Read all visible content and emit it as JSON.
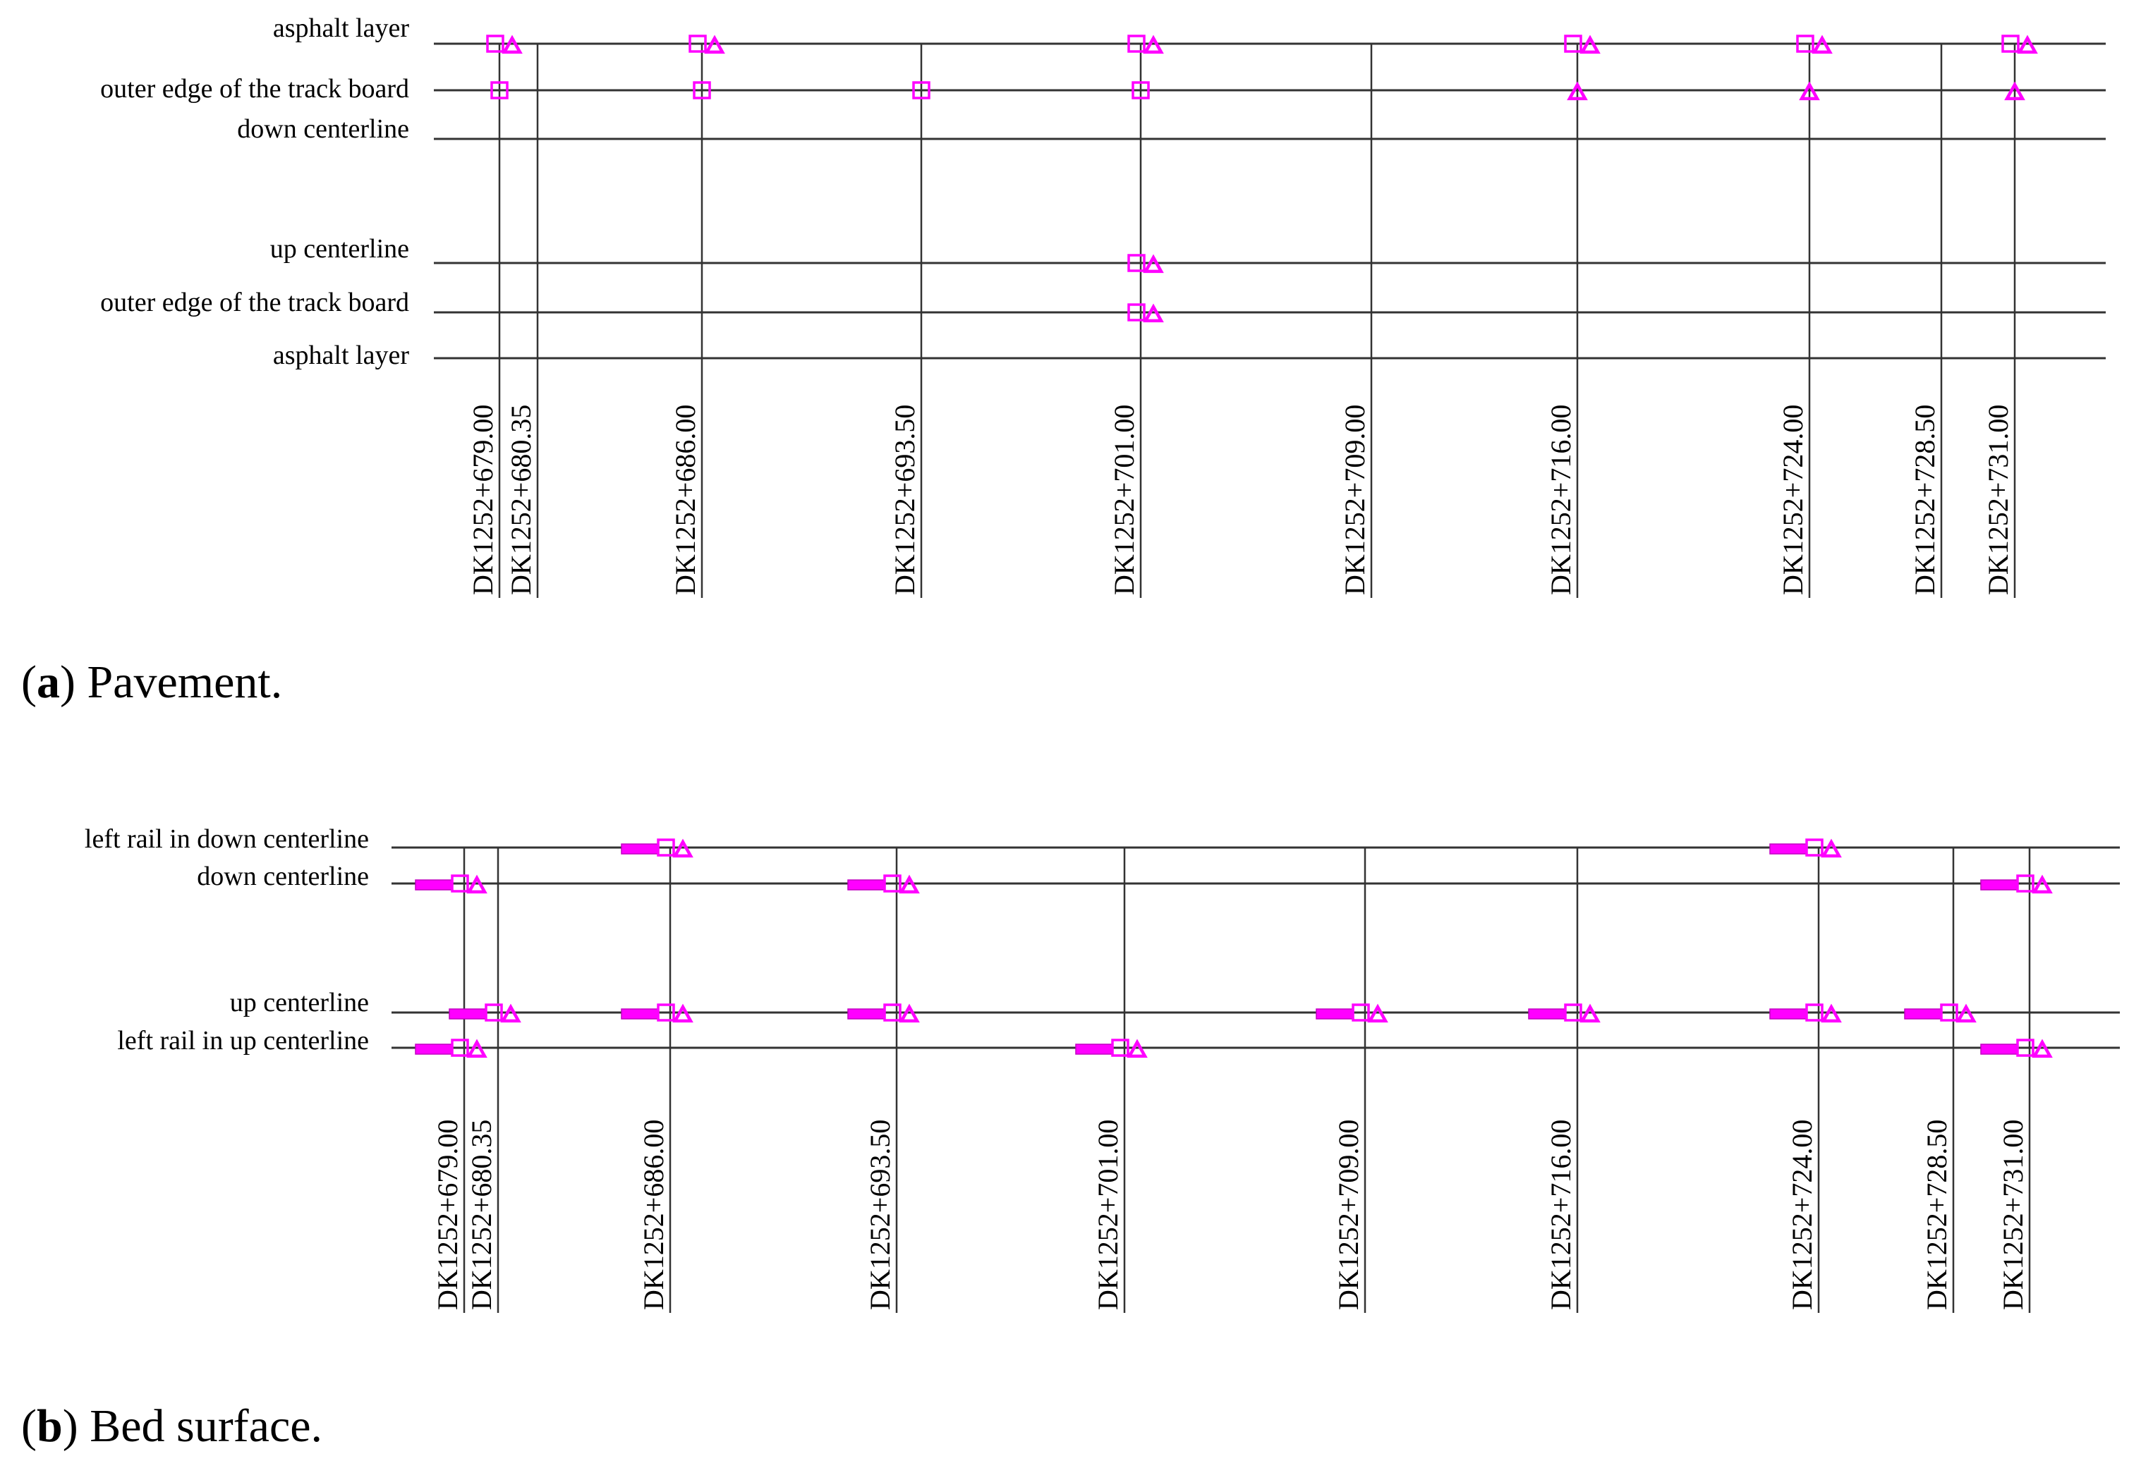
{
  "colors": {
    "marker": "#ff00ff",
    "line": "#333333",
    "text": "#000000",
    "background": "#ffffff"
  },
  "panel_a": {
    "caption_letter": "a",
    "caption_text": "Pavement.",
    "row_labels": [
      "asphalt layer",
      "outer edge of the track board",
      "down centerline",
      "up centerline",
      "outer edge of the track board",
      "asphalt layer"
    ],
    "stations": [
      "DK1252+679.00",
      "DK1252+680.35",
      "DK1252+686.00",
      "DK1252+693.50",
      "DK1252+701.00",
      "DK1252+709.00",
      "DK1252+716.00",
      "DK1252+724.00",
      "DK1252+728.50",
      "DK1252+731.00"
    ],
    "markers": [
      {
        "station": 0,
        "row": 0,
        "symbols": [
          "square",
          "triangle"
        ]
      },
      {
        "station": 0,
        "row": 1,
        "symbols": [
          "square"
        ]
      },
      {
        "station": 2,
        "row": 0,
        "symbols": [
          "square",
          "triangle"
        ]
      },
      {
        "station": 2,
        "row": 1,
        "symbols": [
          "square"
        ]
      },
      {
        "station": 3,
        "row": 1,
        "symbols": [
          "square"
        ]
      },
      {
        "station": 4,
        "row": 0,
        "symbols": [
          "square",
          "triangle"
        ]
      },
      {
        "station": 4,
        "row": 1,
        "symbols": [
          "square"
        ]
      },
      {
        "station": 4,
        "row": 3,
        "symbols": [
          "square",
          "triangle"
        ]
      },
      {
        "station": 4,
        "row": 4,
        "symbols": [
          "square",
          "triangle"
        ]
      },
      {
        "station": 6,
        "row": 0,
        "symbols": [
          "square",
          "triangle"
        ]
      },
      {
        "station": 6,
        "row": 1,
        "symbols": [
          "triangle"
        ]
      },
      {
        "station": 7,
        "row": 0,
        "symbols": [
          "square",
          "triangle"
        ]
      },
      {
        "station": 7,
        "row": 1,
        "symbols": [
          "triangle"
        ]
      },
      {
        "station": 9,
        "row": 0,
        "symbols": [
          "square",
          "triangle"
        ]
      },
      {
        "station": 9,
        "row": 1,
        "symbols": [
          "triangle"
        ]
      }
    ]
  },
  "panel_b": {
    "caption_letter": "b",
    "caption_text": "Bed surface.",
    "row_labels": [
      "left rail in down centerline",
      "down centerline",
      "up centerline",
      "left rail in up centerline"
    ],
    "stations": [
      "DK1252+679.00",
      "DK1252+680.35",
      "DK1252+686.00",
      "DK1252+693.50",
      "DK1252+701.00",
      "DK1252+709.00",
      "DK1252+716.00",
      "DK1252+724.00",
      "DK1252+728.50",
      "DK1252+731.00"
    ],
    "markers": [
      {
        "station": 0,
        "row": 1,
        "symbols": [
          "bar",
          "square",
          "triangle"
        ]
      },
      {
        "station": 0,
        "row": 3,
        "symbols": [
          "bar",
          "square",
          "triangle"
        ]
      },
      {
        "station": 1,
        "row": 2,
        "symbols": [
          "bar",
          "square",
          "triangle"
        ]
      },
      {
        "station": 2,
        "row": 0,
        "symbols": [
          "bar",
          "square",
          "triangle"
        ]
      },
      {
        "station": 2,
        "row": 2,
        "symbols": [
          "bar",
          "square",
          "triangle"
        ]
      },
      {
        "station": 3,
        "row": 1,
        "symbols": [
          "bar",
          "square",
          "triangle"
        ]
      },
      {
        "station": 3,
        "row": 2,
        "symbols": [
          "bar",
          "square",
          "triangle"
        ]
      },
      {
        "station": 4,
        "row": 3,
        "symbols": [
          "bar",
          "square",
          "triangle"
        ]
      },
      {
        "station": 5,
        "row": 2,
        "symbols": [
          "bar",
          "square",
          "triangle"
        ]
      },
      {
        "station": 6,
        "row": 2,
        "symbols": [
          "bar",
          "square",
          "triangle"
        ]
      },
      {
        "station": 7,
        "row": 0,
        "symbols": [
          "bar",
          "square",
          "triangle"
        ]
      },
      {
        "station": 7,
        "row": 2,
        "symbols": [
          "bar",
          "square",
          "triangle"
        ]
      },
      {
        "station": 8,
        "row": 2,
        "symbols": [
          "bar",
          "square",
          "triangle"
        ]
      },
      {
        "station": 9,
        "row": 1,
        "symbols": [
          "bar",
          "square",
          "triangle"
        ]
      },
      {
        "station": 9,
        "row": 3,
        "symbols": [
          "bar",
          "square",
          "triangle"
        ]
      }
    ]
  }
}
